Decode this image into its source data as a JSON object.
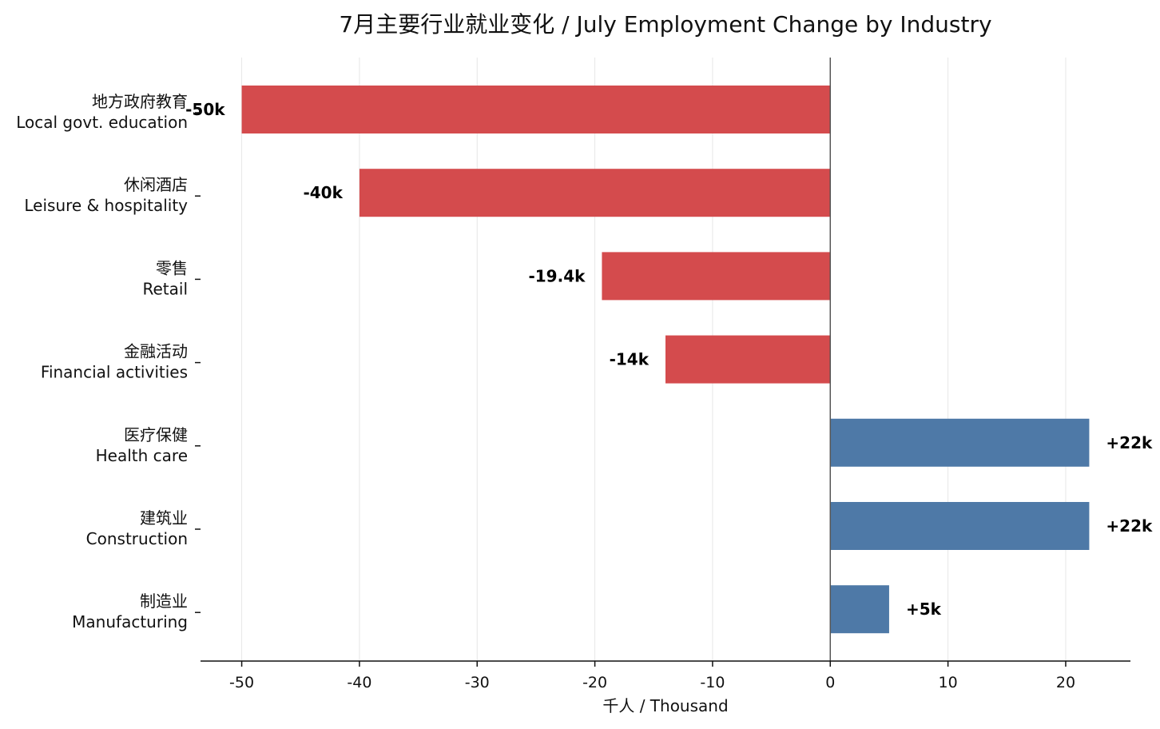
{
  "chart_data": {
    "type": "bar",
    "orientation": "horizontal",
    "title": "7月主要行业就业变化 / July Employment Change by Industry",
    "xlabel": "千人 / Thousand",
    "ylabel": "",
    "xlim": [
      -53.5,
      25.5
    ],
    "xticks": [
      -50,
      -40,
      -30,
      -20,
      -10,
      0,
      10,
      20
    ],
    "grid": "vertical",
    "categories": [
      {
        "zh": "地方政府教育",
        "en": "Local govt. education"
      },
      {
        "zh": "休闲酒店",
        "en": "Leisure & hospitality"
      },
      {
        "zh": "零售",
        "en": "Retail"
      },
      {
        "zh": "金融活动",
        "en": "Financial activities"
      },
      {
        "zh": "医疗保健",
        "en": "Health care"
      },
      {
        "zh": "建筑业",
        "en": "Construction"
      },
      {
        "zh": "制造业",
        "en": "Manufacturing"
      }
    ],
    "values": [
      -50,
      -40,
      -19.4,
      -14,
      22,
      22,
      5
    ],
    "data_labels": [
      "-50k",
      "-40k",
      "-19.4k",
      "-14k",
      "+22k",
      "+22k",
      "+5k"
    ],
    "colors": {
      "negative": "#d44b4d",
      "positive": "#4e79a7"
    }
  }
}
